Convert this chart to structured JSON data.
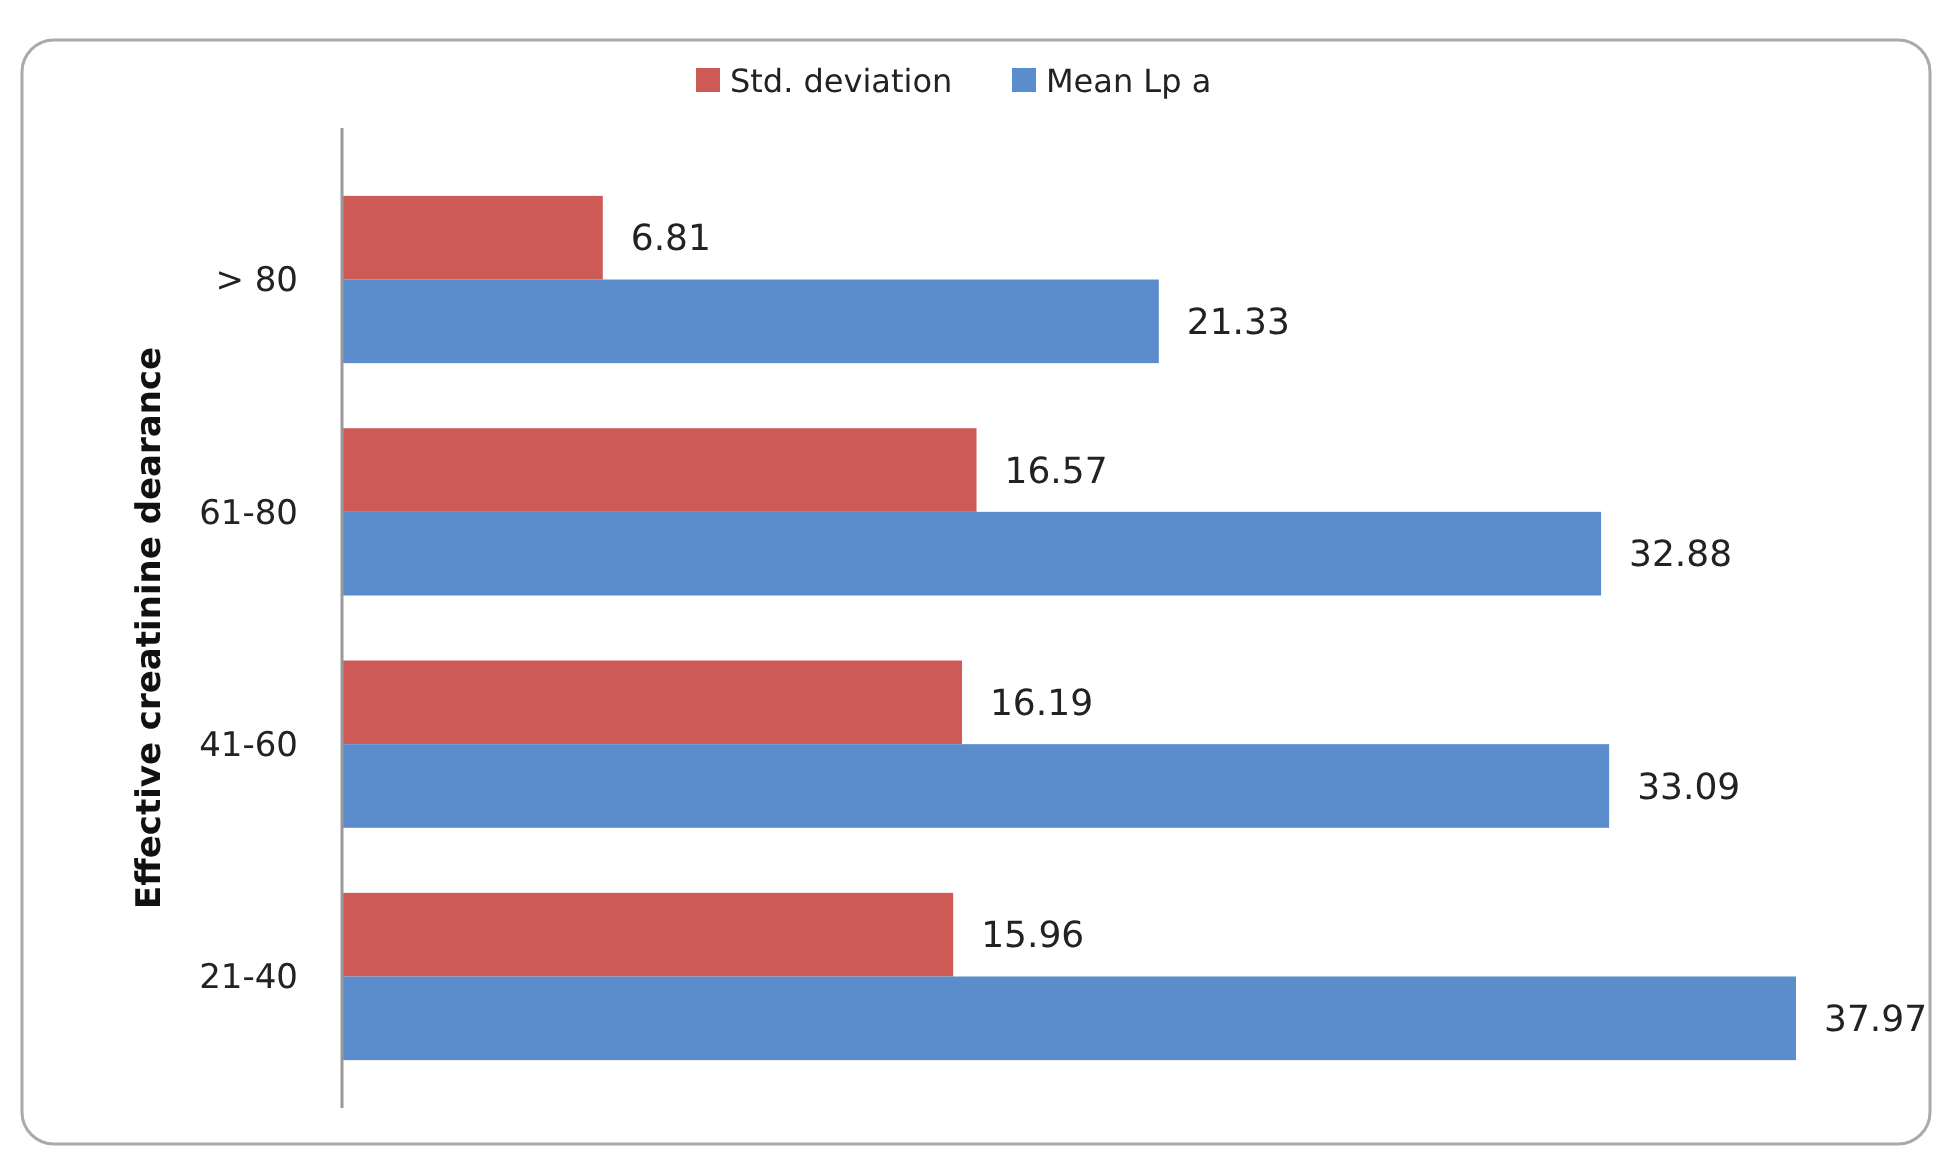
{
  "chart_data": {
    "type": "bar",
    "orientation": "horizontal",
    "ylabel": "Effective creatinine dearance",
    "categories": [
      "> 80",
      "61-80",
      "41-60",
      "21-40"
    ],
    "series": [
      {
        "name": "Std. deviation",
        "color": "#cd5a57",
        "values": [
          6.81,
          16.57,
          16.19,
          15.96
        ]
      },
      {
        "name": "Mean Lp a",
        "color": "#5b8dcc",
        "values": [
          21.33,
          32.88,
          33.09,
          37.97
        ]
      }
    ],
    "data_labels": true,
    "legend": "top",
    "grid": false,
    "tick_labels": "y"
  }
}
